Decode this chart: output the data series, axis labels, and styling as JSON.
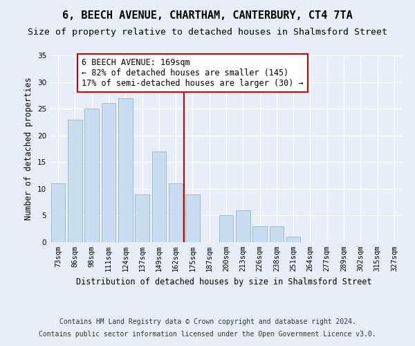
{
  "title_line1": "6, BEECH AVENUE, CHARTHAM, CANTERBURY, CT4 7TA",
  "title_line2": "Size of property relative to detached houses in Shalmsford Street",
  "xlabel": "Distribution of detached houses by size in Shalmsford Street",
  "ylabel": "Number of detached properties",
  "footer_line1": "Contains HM Land Registry data © Crown copyright and database right 2024.",
  "footer_line2": "Contains public sector information licensed under the Open Government Licence v3.0.",
  "annotation_line1": "6 BEECH AVENUE: 169sqm",
  "annotation_line2": "← 82% of detached houses are smaller (145)",
  "annotation_line3": "17% of semi-detached houses are larger (30) →",
  "bar_labels": [
    "73sqm",
    "86sqm",
    "98sqm",
    "111sqm",
    "124sqm",
    "137sqm",
    "149sqm",
    "162sqm",
    "175sqm",
    "187sqm",
    "200sqm",
    "213sqm",
    "226sqm",
    "238sqm",
    "251sqm",
    "264sqm",
    "277sqm",
    "289sqm",
    "302sqm",
    "315sqm",
    "327sqm"
  ],
  "bar_values": [
    11,
    23,
    25,
    26,
    27,
    9,
    17,
    11,
    9,
    0,
    5,
    6,
    3,
    3,
    1,
    0,
    0,
    0,
    0,
    0,
    0
  ],
  "bar_color": "#c9ddf0",
  "bar_edge_color": "#a0b8d0",
  "vline_x": 7.5,
  "vline_color": "#cc0000",
  "ylim": [
    0,
    35
  ],
  "yticks": [
    0,
    5,
    10,
    15,
    20,
    25,
    30,
    35
  ],
  "bg_color": "#e8eef8",
  "plot_bg_color": "#e8eef8",
  "grid_color": "#ffffff",
  "annotation_box_color": "#ffffff",
  "annotation_box_edge": "#cc0000",
  "title_fontsize": 11,
  "subtitle_fontsize": 9.5,
  "axis_label_fontsize": 8.5,
  "tick_fontsize": 7.5,
  "annotation_fontsize": 8.5,
  "footer_fontsize": 7
}
